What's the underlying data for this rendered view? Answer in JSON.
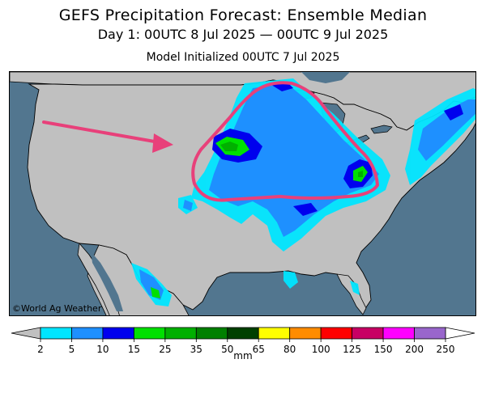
{
  "title": "GEFS Precipitation Forecast: Ensemble Median",
  "subtitle": "Day 1: 00UTC 8 Jul 2025 — 00UTC 9 Jul 2025",
  "initialized": "Model Initialized 00UTC 7 Jul 2025",
  "copyright": "©World Ag Weather",
  "legend": {
    "units": "mm",
    "ticks": [
      "2",
      "5",
      "10",
      "15",
      "25",
      "35",
      "50",
      "65",
      "80",
      "100",
      "125",
      "150",
      "200",
      "250"
    ],
    "colors": [
      "#00e5ff",
      "#1e90ff",
      "#0000ee",
      "#00e000",
      "#00b000",
      "#008000",
      "#004000",
      "#ffff00",
      "#ff8c00",
      "#ff0000",
      "#c80064",
      "#ff00ff",
      "#9966cc"
    ],
    "end_colors": {
      "low": "#c0c0c0",
      "high": "#ffffff"
    }
  },
  "colors": {
    "ocean": "#52768f",
    "land": "#c0c0c0",
    "annotation": "#e8407a"
  }
}
